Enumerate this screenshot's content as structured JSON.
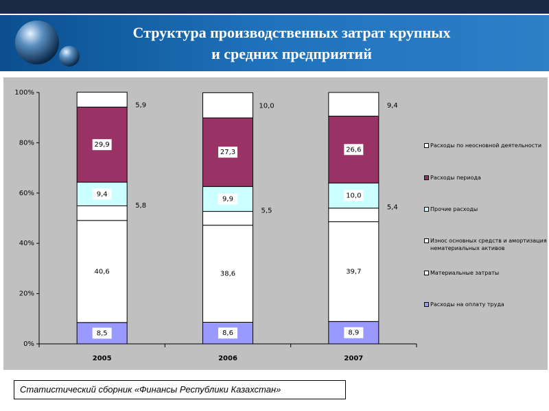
{
  "chart_data": {
    "type": "bar",
    "stacked": true,
    "title": "Структура производственных затрат крупных и средних предприятий",
    "categories": [
      "2005",
      "2006",
      "2007"
    ],
    "series": [
      {
        "name": "Расходы на оплату труда",
        "color": "#9999ff",
        "values": [
          8.5,
          8.6,
          8.9
        ],
        "value_labels": [
          "8,5",
          "8,6",
          "8,9"
        ]
      },
      {
        "name": "Материальные затраты",
        "color": "#ffffff",
        "values": [
          40.6,
          38.6,
          39.7
        ],
        "value_labels": [
          "40,6",
          "38,6",
          "39,7"
        ]
      },
      {
        "name": "Износ основных средств и амортизация нематериальных активов",
        "color": "#ffffff",
        "values": [
          5.8,
          5.5,
          5.4
        ],
        "value_labels": [
          "5,8",
          "5,5",
          "5,4"
        ]
      },
      {
        "name": "Прочие расходы",
        "color": "#ccffff",
        "values": [
          9.4,
          9.9,
          10.0
        ],
        "value_labels": [
          "9,4",
          "9,9",
          "10,0"
        ]
      },
      {
        "name": "Расходы периода",
        "color": "#993366",
        "values": [
          29.9,
          27.3,
          26.6
        ],
        "value_labels": [
          "29,9",
          "27,3",
          "26,6"
        ]
      },
      {
        "name": "Расходы по неосновной деятельности",
        "color": "#ffffff",
        "values": [
          5.9,
          10.0,
          9.4
        ],
        "value_labels": [
          "5,9",
          "10,0",
          "9,4"
        ]
      }
    ],
    "ylim": [
      0,
      100
    ],
    "yticks": [
      {
        "value": 0,
        "label": "0%"
      },
      {
        "value": 20,
        "label": "20%"
      },
      {
        "value": 40,
        "label": "40%"
      },
      {
        "value": 60,
        "label": "60%"
      },
      {
        "value": 80,
        "label": "80%"
      },
      {
        "value": 100,
        "label": "100%"
      }
    ],
    "legend": "right",
    "source": "Статистический сборник «Финансы Республики Казахстан»"
  }
}
